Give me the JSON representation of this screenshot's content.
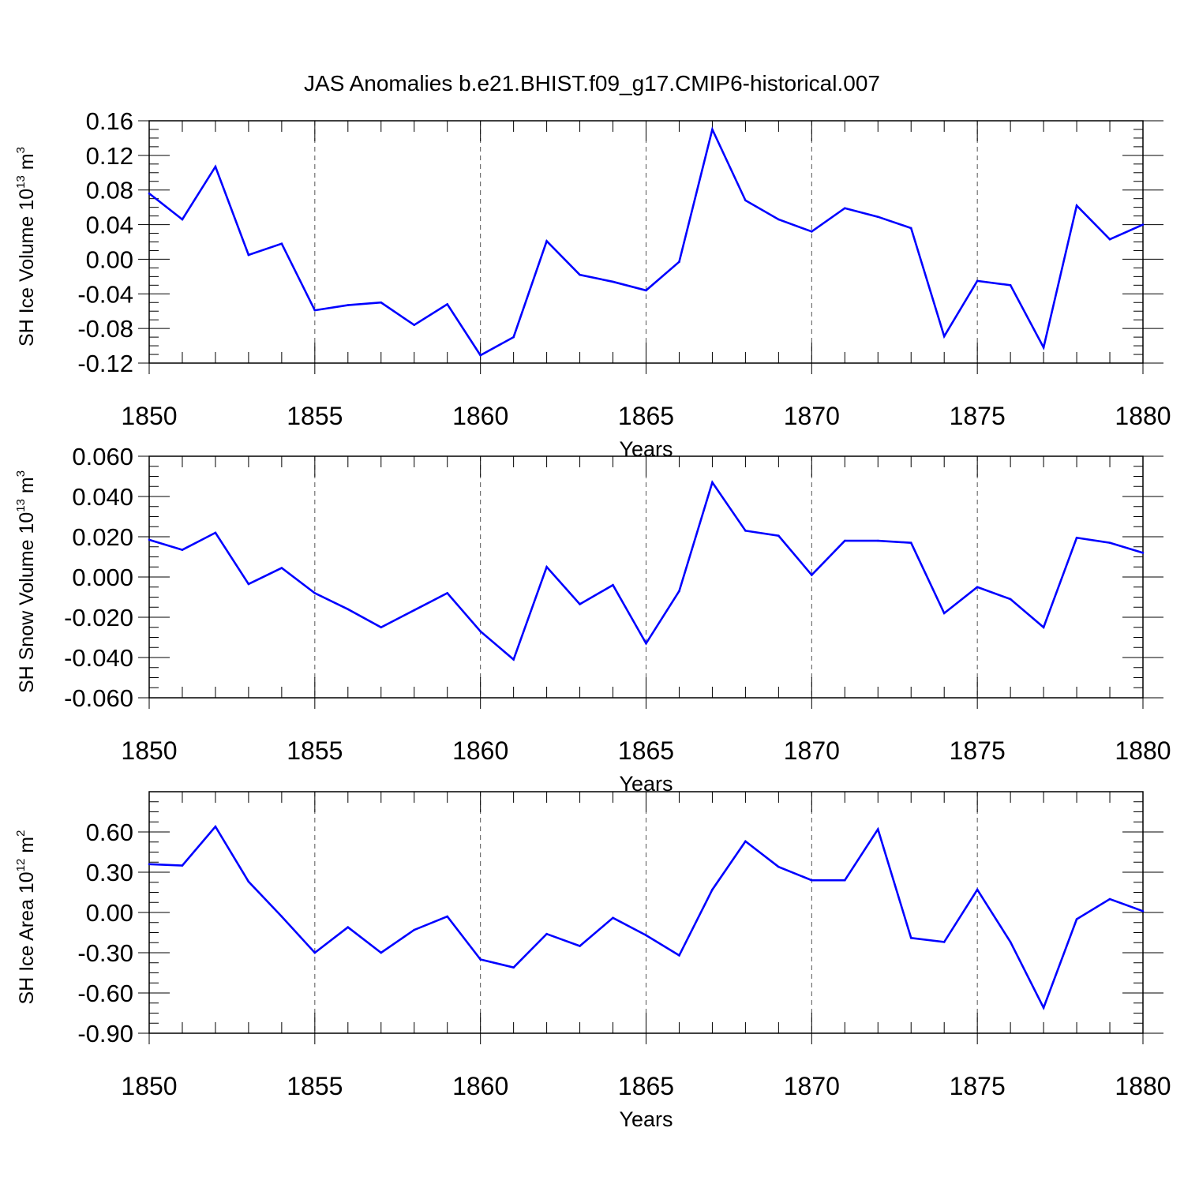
{
  "title": "JAS Anomalies b.e21.BHIST.f09_g17.CMIP6-historical.007",
  "line_color": "#0000ff",
  "chart_data": [
    {
      "type": "line",
      "ylabel": "SH Ice Volume 10",
      "ylabel_sup": "13",
      "ylabel_unit": " m",
      "ylabel_unit_sup": "3",
      "xlabel": "Years",
      "xlim": [
        1850,
        1880
      ],
      "ylim": [
        -0.12,
        0.16
      ],
      "xticks": [
        "1850",
        "1855",
        "1860",
        "1865",
        "1870",
        "1875",
        "1880"
      ],
      "yticks": [
        "-0.12",
        "-0.08",
        "-0.04",
        "0.00",
        "0.04",
        "0.08",
        "0.12",
        "0.16"
      ],
      "grid": "dashed vertical at major x ticks",
      "x": [
        1850,
        1851,
        1852,
        1853,
        1854,
        1855,
        1856,
        1857,
        1858,
        1859,
        1860,
        1861,
        1862,
        1863,
        1864,
        1865,
        1866,
        1867,
        1868,
        1869,
        1870,
        1871,
        1872,
        1873,
        1874,
        1875,
        1876,
        1877,
        1878,
        1879,
        1880
      ],
      "series": [
        {
          "values": [
            0.076,
            0.046,
            0.107,
            0.005,
            0.018,
            -0.059,
            -0.053,
            -0.05,
            -0.076,
            -0.052,
            -0.111,
            -0.09,
            0.021,
            -0.018,
            -0.026,
            -0.036,
            -0.003,
            0.15,
            0.068,
            0.046,
            0.032,
            0.059,
            0.049,
            0.036,
            -0.089,
            -0.025,
            -0.03,
            -0.102,
            0.062,
            0.023,
            0.04
          ]
        }
      ]
    },
    {
      "type": "line",
      "ylabel": "SH Snow Volume 10",
      "ylabel_sup": "13",
      "ylabel_unit": " m",
      "ylabel_unit_sup": "3",
      "xlabel": "Years",
      "xlim": [
        1850,
        1880
      ],
      "ylim": [
        -0.06,
        0.06
      ],
      "xticks": [
        "1850",
        "1855",
        "1860",
        "1865",
        "1870",
        "1875",
        "1880"
      ],
      "yticks": [
        "-0.060",
        "-0.040",
        "-0.020",
        "0.000",
        "0.020",
        "0.040",
        "0.060"
      ],
      "grid": "dashed vertical at major x ticks",
      "x": [
        1850,
        1851,
        1852,
        1853,
        1854,
        1855,
        1856,
        1857,
        1858,
        1859,
        1860,
        1861,
        1862,
        1863,
        1864,
        1865,
        1866,
        1867,
        1868,
        1869,
        1870,
        1871,
        1872,
        1873,
        1874,
        1875,
        1876,
        1877,
        1878,
        1879,
        1880
      ],
      "series": [
        {
          "values": [
            0.0185,
            0.0135,
            0.022,
            -0.0035,
            0.0045,
            -0.008,
            -0.016,
            -0.025,
            -0.0165,
            -0.008,
            -0.027,
            -0.041,
            0.005,
            -0.0135,
            -0.004,
            -0.033,
            -0.007,
            0.047,
            0.023,
            0.0205,
            0.001,
            0.018,
            0.018,
            0.017,
            -0.018,
            -0.005,
            -0.011,
            -0.025,
            0.0195,
            0.017,
            0.012
          ]
        }
      ]
    },
    {
      "type": "line",
      "ylabel": "SH Ice Area 10",
      "ylabel_sup": "12",
      "ylabel_unit": " m",
      "ylabel_unit_sup": "2",
      "xlabel": "Years",
      "xlim": [
        1850,
        1880
      ],
      "ylim": [
        -0.9,
        0.9
      ],
      "xticks": [
        "1850",
        "1855",
        "1860",
        "1865",
        "1870",
        "1875",
        "1880"
      ],
      "yticks": [
        "-0.90",
        "-0.60",
        "-0.30",
        "0.00",
        "0.30",
        "0.60"
      ],
      "grid": "dashed vertical at major x ticks",
      "x": [
        1850,
        1851,
        1852,
        1853,
        1854,
        1855,
        1856,
        1857,
        1858,
        1859,
        1860,
        1861,
        1862,
        1863,
        1864,
        1865,
        1866,
        1867,
        1868,
        1869,
        1870,
        1871,
        1872,
        1873,
        1874,
        1875,
        1876,
        1877,
        1878,
        1879,
        1880
      ],
      "series": [
        {
          "values": [
            0.36,
            0.35,
            0.64,
            0.23,
            -0.03,
            -0.3,
            -0.11,
            -0.3,
            -0.13,
            -0.03,
            -0.35,
            -0.41,
            -0.16,
            -0.25,
            -0.04,
            -0.17,
            -0.32,
            0.17,
            0.53,
            0.34,
            0.24,
            0.24,
            0.62,
            -0.19,
            -0.22,
            0.17,
            -0.22,
            -0.71,
            -0.05,
            0.1,
            0.01
          ]
        }
      ]
    }
  ]
}
